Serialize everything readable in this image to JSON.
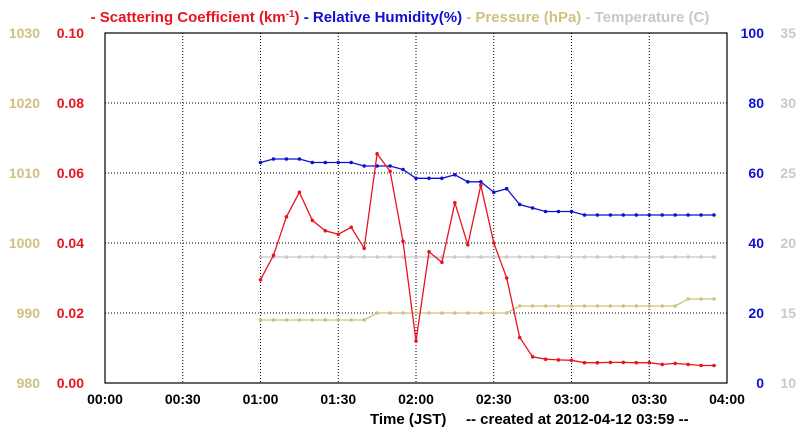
{
  "chart_data": {
    "type": "line",
    "legend": [
      {
        "prefix": "- ",
        "text": "Scattering Coefficient (km",
        "sup": "-1",
        "suffix": ")",
        "color": "#e8141e"
      },
      {
        "prefix": "- ",
        "text": "Relative Humidity(%)",
        "color": "#1010d0"
      },
      {
        "prefix": "- ",
        "text": "Pressure (hPa)",
        "color": "#cfc17f"
      },
      {
        "prefix": "- ",
        "text": "Temperature (",
        "suffix": "C)",
        "color": "#c8c8c8"
      }
    ],
    "xlabel": "Time (JST)",
    "footer": "-- created at 2012-04-12 03:59 --",
    "x_ticks": [
      "00:00",
      "00:30",
      "01:00",
      "01:30",
      "02:00",
      "02:30",
      "03:00",
      "03:30",
      "04:00"
    ],
    "x_range_minutes": [
      0,
      240
    ],
    "axes": {
      "pressure": {
        "range": [
          980,
          1030
        ],
        "ticks": [
          "980",
          "990",
          "1000",
          "1010",
          "1020",
          "1030"
        ],
        "color": "#cfc17f"
      },
      "scattering": {
        "range": [
          0,
          0.1
        ],
        "ticks": [
          "0.00",
          "0.02",
          "0.04",
          "0.06",
          "0.08",
          "0.10"
        ],
        "color": "#e8141e"
      },
      "humidity": {
        "range": [
          0,
          100
        ],
        "ticks": [
          "0",
          "20",
          "40",
          "60",
          "80",
          "100"
        ],
        "color": "#1010d0"
      },
      "temperature": {
        "range": [
          10,
          35
        ],
        "ticks": [
          "10",
          "15",
          "20",
          "25",
          "30",
          "35"
        ],
        "color": "#c8c8c8"
      }
    },
    "series": [
      {
        "name": "Scattering Coefficient",
        "axis": "scattering",
        "color": "#e8141e",
        "x": [
          60,
          65,
          70,
          75,
          80,
          85,
          90,
          95,
          100,
          105,
          110,
          115,
          120,
          125,
          130,
          135,
          140,
          145,
          150,
          155,
          160,
          165,
          170,
          175,
          180,
          185,
          190,
          195,
          200,
          205,
          210,
          215,
          220,
          225,
          230,
          235
        ],
        "y": [
          0.0295,
          0.0365,
          0.0475,
          0.0545,
          0.0465,
          0.0435,
          0.0425,
          0.0445,
          0.0385,
          0.0655,
          0.0605,
          0.0405,
          0.012,
          0.0375,
          0.0345,
          0.0515,
          0.0395,
          0.0565,
          0.04,
          0.03,
          0.013,
          0.0075,
          0.0068,
          0.0066,
          0.0065,
          0.0058,
          0.0058,
          0.0059,
          0.0059,
          0.0058,
          0.0058,
          0.0053,
          0.0056,
          0.0053,
          0.005,
          0.005
        ]
      },
      {
        "name": "Relative Humidity",
        "axis": "humidity",
        "color": "#1010d0",
        "x": [
          60,
          65,
          70,
          75,
          80,
          85,
          90,
          95,
          100,
          105,
          110,
          115,
          120,
          125,
          130,
          135,
          140,
          145,
          150,
          155,
          160,
          165,
          170,
          175,
          180,
          185,
          190,
          195,
          200,
          205,
          210,
          215,
          220,
          225,
          230,
          235
        ],
        "y": [
          63,
          64,
          64,
          64,
          63,
          63,
          63,
          63,
          62,
          62,
          62,
          61,
          58.5,
          58.5,
          58.5,
          59.5,
          57.5,
          57.5,
          54.5,
          55.5,
          51,
          50,
          49,
          49,
          49,
          48,
          48,
          48,
          48,
          48,
          48,
          48,
          48,
          48,
          48,
          48
        ]
      },
      {
        "name": "Pressure",
        "axis": "pressure",
        "color": "#cfc17f",
        "x": [
          60,
          65,
          70,
          75,
          80,
          85,
          90,
          95,
          100,
          105,
          110,
          115,
          120,
          125,
          130,
          135,
          140,
          145,
          150,
          155,
          160,
          165,
          170,
          175,
          180,
          185,
          190,
          195,
          200,
          205,
          210,
          215,
          220,
          225,
          230,
          235
        ],
        "y": [
          989,
          989,
          989,
          989,
          989,
          989,
          989,
          989,
          989,
          990,
          990,
          990,
          990,
          990,
          990,
          990,
          990,
          990,
          990,
          990,
          991,
          991,
          991,
          991,
          991,
          991,
          991,
          991,
          991,
          991,
          991,
          991,
          991,
          992,
          992,
          992
        ]
      },
      {
        "name": "Temperature",
        "axis": "temperature",
        "color": "#c8c8c8",
        "x": [
          60,
          65,
          70,
          75,
          80,
          85,
          90,
          95,
          100,
          105,
          110,
          115,
          120,
          125,
          130,
          135,
          140,
          145,
          150,
          155,
          160,
          165,
          170,
          175,
          180,
          185,
          190,
          195,
          200,
          205,
          210,
          215,
          220,
          225,
          230,
          235
        ],
        "y": [
          19,
          19,
          19,
          19,
          19,
          19,
          19,
          19,
          19,
          19,
          19,
          19,
          19,
          19,
          19,
          19,
          19,
          19,
          19,
          19,
          19,
          19,
          19,
          19,
          19,
          19,
          19,
          19,
          19,
          19,
          19,
          19,
          19,
          19,
          19,
          19
        ]
      }
    ],
    "grid": true
  }
}
